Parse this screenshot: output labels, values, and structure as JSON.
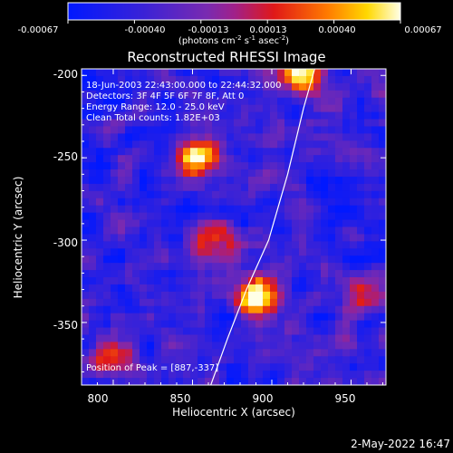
{
  "colorbar": {
    "tick_labels": [
      "-0.00067",
      "-0.00040",
      "-0.00013",
      "0.00013",
      "0.00040",
      "0.00067"
    ],
    "unit_prefix": "(photons cm",
    "unit_sup1": "-2",
    "unit_mid1": " s",
    "unit_sup2": "-1",
    "unit_mid2": " asec",
    "unit_sup3": "-2",
    "unit_suffix": ")"
  },
  "plot": {
    "title": "Reconstructed RHESSI Image",
    "xlabel": "Heliocentric X (arcsec)",
    "ylabel": "Heliocentric Y (arcsec)",
    "x_ticks": [
      "800",
      "850",
      "900",
      "950"
    ],
    "y_ticks": [
      "-200",
      "-250",
      "-300",
      "-350"
    ],
    "xlim": [
      780,
      972
    ],
    "ylim": [
      -388,
      -196
    ],
    "limb_curve": [
      [
        860,
        -392
      ],
      [
        872,
        -360
      ],
      [
        884,
        -330
      ],
      [
        898,
        -300
      ],
      [
        910,
        -260
      ],
      [
        920,
        -220
      ],
      [
        927,
        -196
      ]
    ],
    "info_lines": [
      "18-Jun-2003 22:43:00.000 to 22:44:32.000",
      "Detectors: 3F 4F 5F 6F 7F 8F, Att 0",
      "Energy Range: 12.0 - 25.0 keV",
      "Clean     Total counts: 1.82E+03"
    ],
    "peak_label": "Position of Peak = [887,-337]"
  },
  "footer": {
    "date": "2-May-2022 16:47"
  },
  "image_data": {
    "colormap": "RHESSI blue-purple-red-yellow-white",
    "hotspots": [
      {
        "x": 852,
        "y": -250,
        "intensity": 1.0
      },
      {
        "x": 890,
        "y": -335,
        "intensity": 1.0
      },
      {
        "x": 920,
        "y": -200,
        "intensity": 0.85
      },
      {
        "x": 865,
        "y": -300,
        "intensity": 0.6
      },
      {
        "x": 800,
        "y": -370,
        "intensity": 0.55
      },
      {
        "x": 955,
        "y": -335,
        "intensity": 0.6
      }
    ]
  }
}
